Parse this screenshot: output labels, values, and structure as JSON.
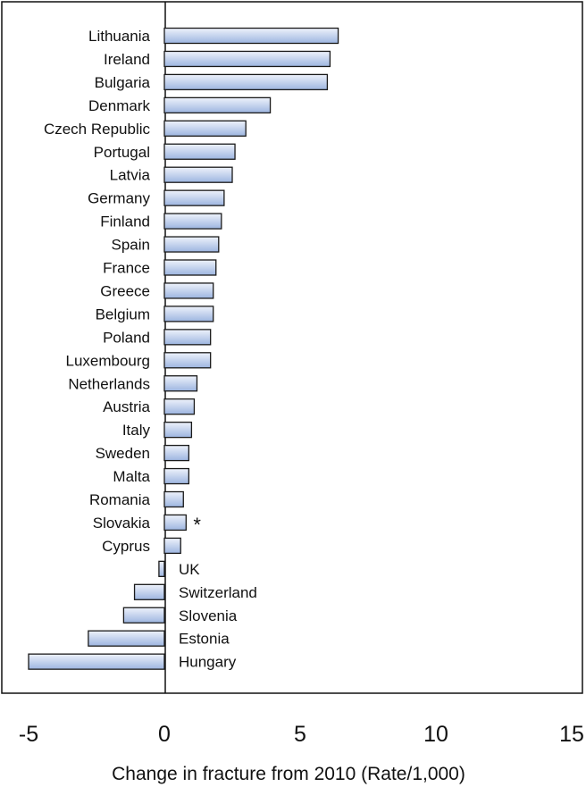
{
  "chart_data": {
    "type": "bar",
    "orientation": "horizontal",
    "title": "",
    "xlabel": "Change in fracture from 2010 (Rate/1,000)",
    "ylabel": "",
    "xlim": [
      -5,
      15
    ],
    "xticks": [
      "-5",
      "0",
      "5",
      "10",
      "15"
    ],
    "grid": false,
    "legend": "none",
    "categories": [
      "Lithuania",
      "Ireland",
      "Bulgaria",
      "Denmark",
      "Czech Republic",
      "Portugal",
      "Latvia",
      "Germany",
      "Finland",
      "Spain",
      "France",
      "Greece",
      "Belgium",
      "Poland",
      "Luxembourg",
      "Netherlands",
      "Austria",
      "Italy",
      "Sweden",
      "Malta",
      "Romania",
      "Slovakia",
      "Cyprus",
      "UK",
      "Switzerland",
      "Slovenia",
      "Estonia",
      "Hungary"
    ],
    "values": [
      6.4,
      6.1,
      6.0,
      3.9,
      3.0,
      2.6,
      2.5,
      2.2,
      2.1,
      2.0,
      1.9,
      1.8,
      1.8,
      1.7,
      1.7,
      1.2,
      1.1,
      1.0,
      0.9,
      0.9,
      0.7,
      0.8,
      0.6,
      -0.2,
      -1.1,
      -1.5,
      -2.8,
      -5.0
    ],
    "annotations": [
      {
        "category": "Slovakia",
        "text": "*"
      }
    ],
    "colors": {
      "bar_top": "#eef2fb",
      "bar_bottom": "#9db5e0",
      "bar_stroke": "#1a1a1a",
      "axis": "#111111"
    }
  }
}
